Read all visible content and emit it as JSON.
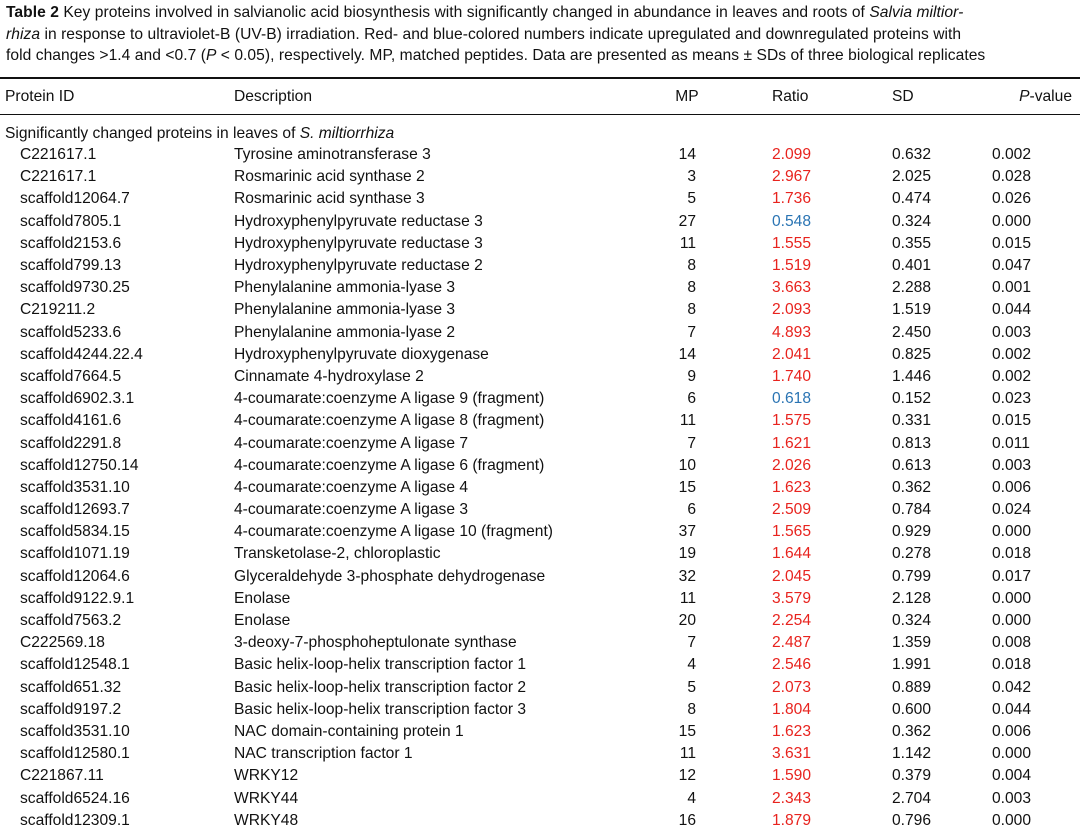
{
  "caption": {
    "label": "Table 2",
    "line1_a": " Key proteins involved in salvianolic acid biosynthesis with significantly changed in abundance in leaves and roots of ",
    "line1_species": "Salvia miltior-",
    "line2_species": "rhiza",
    "line2_a": " in response to ultraviolet-B (UV-B) irradiation. Red- and blue-colored numbers indicate upregulated and downregulated proteins with",
    "line3_a": "fold changes >1.4 and <0.7 (",
    "line3_p": "P",
    "line3_b": " < 0.05), respectively. MP, matched peptides. Data are presented as means ± SDs of three biological replicates"
  },
  "columns": {
    "protein_id": "Protein ID",
    "description": "Description",
    "mp": "MP",
    "ratio": "Ratio",
    "sd": "SD",
    "pvalue_p": "P",
    "pvalue_rest": "-value"
  },
  "section": {
    "prefix": "Significantly changed proteins in leaves of ",
    "species": "S. miltiorrhiza"
  },
  "colors": {
    "up": "#e8231e",
    "down": "#2a74b3"
  },
  "rows": [
    {
      "id": "C221617.1",
      "desc": "Tyrosine aminotransferase 3",
      "mp": "14",
      "ratio": "2.099",
      "sd": "0.632",
      "p": "0.002",
      "dir": "up"
    },
    {
      "id": "C221617.1",
      "desc": "Rosmarinic acid synthase 2",
      "mp": "3",
      "ratio": "2.967",
      "sd": "2.025",
      "p": "0.028",
      "dir": "up"
    },
    {
      "id": "scaffold12064.7",
      "desc": "Rosmarinic acid synthase 3",
      "mp": "5",
      "ratio": "1.736",
      "sd": "0.474",
      "p": "0.026",
      "dir": "up"
    },
    {
      "id": "scaffold7805.1",
      "desc": "Hydroxyphenylpyruvate reductase 3",
      "mp": "27",
      "ratio": "0.548",
      "sd": "0.324",
      "p": "0.000",
      "dir": "down"
    },
    {
      "id": "scaffold2153.6",
      "desc": "Hydroxyphenylpyruvate reductase 3",
      "mp": "11",
      "ratio": "1.555",
      "sd": "0.355",
      "p": "0.015",
      "dir": "up"
    },
    {
      "id": "scaffold799.13",
      "desc": "Hydroxyphenylpyruvate reductase 2",
      "mp": "8",
      "ratio": "1.519",
      "sd": "0.401",
      "p": "0.047",
      "dir": "up"
    },
    {
      "id": "scaffold9730.25",
      "desc": "Phenylalanine ammonia-lyase 3",
      "mp": "8",
      "ratio": "3.663",
      "sd": "2.288",
      "p": "0.001",
      "dir": "up"
    },
    {
      "id": "C219211.2",
      "desc": "Phenylalanine ammonia-lyase 3",
      "mp": "8",
      "ratio": "2.093",
      "sd": "1.519",
      "p": "0.044",
      "dir": "up"
    },
    {
      "id": "scaffold5233.6",
      "desc": "Phenylalanine ammonia-lyase 2",
      "mp": "7",
      "ratio": "4.893",
      "sd": "2.450",
      "p": "0.003",
      "dir": "up"
    },
    {
      "id": "scaffold4244.22.4",
      "desc": "Hydroxyphenylpyruvate dioxygenase",
      "mp": "14",
      "ratio": "2.041",
      "sd": "0.825",
      "p": "0.002",
      "dir": "up"
    },
    {
      "id": "scaffold7664.5",
      "desc": "Cinnamate 4-hydroxylase 2",
      "mp": "9",
      "ratio": "1.740",
      "sd": "1.446",
      "p": "0.002",
      "dir": "up"
    },
    {
      "id": "scaffold6902.3.1",
      "desc": "4-coumarate:coenzyme A ligase 9 (fragment)",
      "mp": "6",
      "ratio": "0.618",
      "sd": "0.152",
      "p": "0.023",
      "dir": "down"
    },
    {
      "id": "scaffold4161.6",
      "desc": "4-coumarate:coenzyme A ligase 8 (fragment)",
      "mp": "11",
      "ratio": "1.575",
      "sd": "0.331",
      "p": "0.015",
      "dir": "up"
    },
    {
      "id": "scaffold2291.8",
      "desc": "4-coumarate:coenzyme A ligase 7",
      "mp": "7",
      "ratio": "1.621",
      "sd": "0.813",
      "p": "0.011",
      "dir": "up"
    },
    {
      "id": "scaffold12750.14",
      "desc": "4-coumarate:coenzyme A ligase 6 (fragment)",
      "mp": "10",
      "ratio": "2.026",
      "sd": "0.613",
      "p": "0.003",
      "dir": "up"
    },
    {
      "id": "scaffold3531.10",
      "desc": "4-coumarate:coenzyme A ligase 4",
      "mp": "15",
      "ratio": "1.623",
      "sd": "0.362",
      "p": "0.006",
      "dir": "up"
    },
    {
      "id": "scaffold12693.7",
      "desc": "4-coumarate:coenzyme A ligase 3",
      "mp": "6",
      "ratio": "2.509",
      "sd": "0.784",
      "p": "0.024",
      "dir": "up"
    },
    {
      "id": "scaffold5834.15",
      "desc": "4-coumarate:coenzyme A ligase 10 (fragment)",
      "mp": "37",
      "ratio": "1.565",
      "sd": "0.929",
      "p": "0.000",
      "dir": "up"
    },
    {
      "id": "scaffold1071.19",
      "desc": "Transketolase-2, chloroplastic",
      "mp": "19",
      "ratio": "1.644",
      "sd": "0.278",
      "p": "0.018",
      "dir": "up"
    },
    {
      "id": "scaffold12064.6",
      "desc": "Glyceraldehyde 3-phosphate dehydrogenase",
      "mp": "32",
      "ratio": "2.045",
      "sd": "0.799",
      "p": "0.017",
      "dir": "up"
    },
    {
      "id": "scaffold9122.9.1",
      "desc": "Enolase",
      "mp": "11",
      "ratio": "3.579",
      "sd": "2.128",
      "p": "0.000",
      "dir": "up"
    },
    {
      "id": "scaffold7563.2",
      "desc": "Enolase",
      "mp": "20",
      "ratio": "2.254",
      "sd": "0.324",
      "p": "0.000",
      "dir": "up"
    },
    {
      "id": "C222569.18",
      "desc": "3-deoxy-7-phosphoheptulonate synthase",
      "mp": "7",
      "ratio": "2.487",
      "sd": "1.359",
      "p": "0.008",
      "dir": "up"
    },
    {
      "id": "scaffold12548.1",
      "desc": "Basic helix-loop-helix transcription factor 1",
      "mp": "4",
      "ratio": "2.546",
      "sd": "1.991",
      "p": "0.018",
      "dir": "up"
    },
    {
      "id": "scaffold651.32",
      "desc": "Basic helix-loop-helix transcription factor 2",
      "mp": "5",
      "ratio": "2.073",
      "sd": "0.889",
      "p": "0.042",
      "dir": "up"
    },
    {
      "id": "scaffold9197.2",
      "desc": "Basic helix-loop-helix transcription factor 3",
      "mp": "8",
      "ratio": "1.804",
      "sd": "0.600",
      "p": "0.044",
      "dir": "up"
    },
    {
      "id": "scaffold3531.10",
      "desc": "NAC domain-containing protein 1",
      "mp": "15",
      "ratio": "1.623",
      "sd": "0.362",
      "p": "0.006",
      "dir": "up"
    },
    {
      "id": "scaffold12580.1",
      "desc": "NAC transcription factor 1",
      "mp": "11",
      "ratio": "3.631",
      "sd": "1.142",
      "p": "0.000",
      "dir": "up"
    },
    {
      "id": "C221867.11",
      "desc": "WRKY12",
      "mp": "12",
      "ratio": "1.590",
      "sd": "0.379",
      "p": "0.004",
      "dir": "up"
    },
    {
      "id": "scaffold6524.16",
      "desc": "WRKY44",
      "mp": "4",
      "ratio": "2.343",
      "sd": "2.704",
      "p": "0.003",
      "dir": "up"
    },
    {
      "id": "scaffold12309.1",
      "desc": "WRKY48",
      "mp": "16",
      "ratio": "1.879",
      "sd": "0.796",
      "p": "0.000",
      "dir": "up"
    }
  ]
}
